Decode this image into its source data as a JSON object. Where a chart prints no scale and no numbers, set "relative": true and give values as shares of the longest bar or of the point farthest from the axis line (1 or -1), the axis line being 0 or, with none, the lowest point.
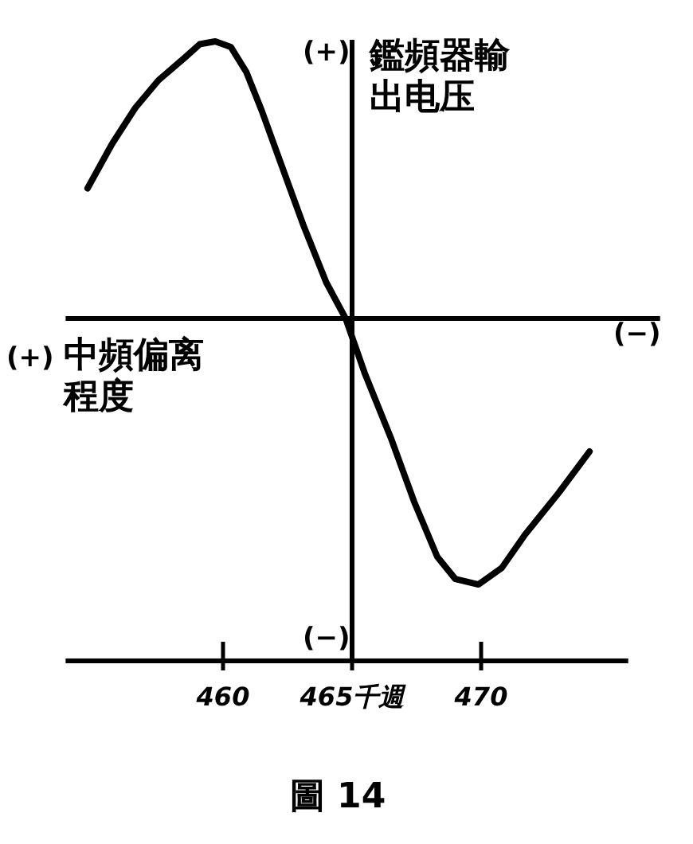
{
  "chart_data": {
    "type": "line",
    "relative": true,
    "color": "#000000",
    "xlabel": "中頻偏离程度",
    "ylabel": "鑑頻器輸出电压",
    "x": [
      454.75,
      455.7,
      456.6,
      457.5,
      458.5,
      459.1,
      459.7,
      460.3,
      460.9,
      461.5,
      462.2,
      463.1,
      464.0,
      464.75,
      465.5,
      466.5,
      467.4,
      468.3,
      469.0,
      469.9,
      470.8,
      471.7,
      473.0,
      474.2
    ],
    "values": [
      0.47,
      0.63,
      0.76,
      0.86,
      0.94,
      0.99,
      1,
      0.98,
      0.89,
      0.75,
      0.57,
      0.34,
      0.13,
      0,
      -0.2,
      -0.43,
      -0.66,
      -0.86,
      -0.94,
      -0.96,
      -0.9,
      -0.78,
      -0.63,
      -0.48
    ],
    "xlim": [
      453.9,
      475.7
    ],
    "xticks": [
      460,
      {
        "value": 465,
        "label": "465千週"
      },
      470
    ],
    "ref_lines": [
      {
        "axis": "x",
        "value": 465
      }
    ],
    "annotations": [
      "(+)",
      "(−)",
      "(+)",
      "(−)",
      "圖 14"
    ]
  }
}
